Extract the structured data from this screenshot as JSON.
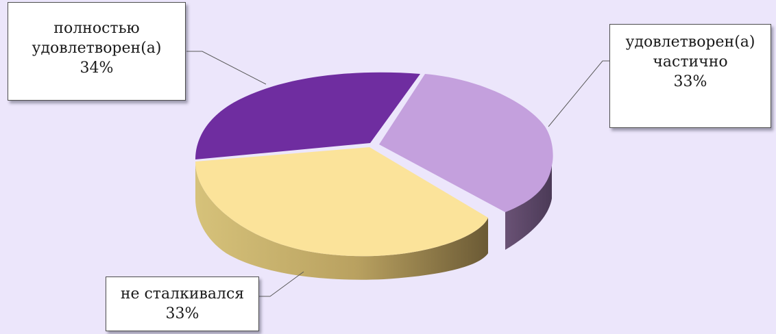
{
  "chart_data": {
    "type": "pie",
    "title": "",
    "slices": [
      {
        "key": "full",
        "label": "полностью удовлетворен(а)",
        "label_lines": [
          "полностью",
          "удовлетворен(а)"
        ],
        "percent_label": "34%",
        "value": 34,
        "color": "#6f2da0"
      },
      {
        "key": "partial",
        "label": "удовлетворен(а) частично",
        "label_lines": [
          "удовлетворен(а)",
          "частично"
        ],
        "percent_label": "33%",
        "value": 33,
        "color": "#c4a0dd"
      },
      {
        "key": "none",
        "label": "не сталкивался",
        "label_lines": [
          "не сталкивался"
        ],
        "percent_label": "33%",
        "value": 33,
        "color": "#fbe39a"
      }
    ],
    "style": "3d-exploded",
    "legend": "none",
    "data_labels": "callout"
  },
  "colors": {
    "background": "#ece6fb",
    "leader_line": "#5a5a5a"
  }
}
